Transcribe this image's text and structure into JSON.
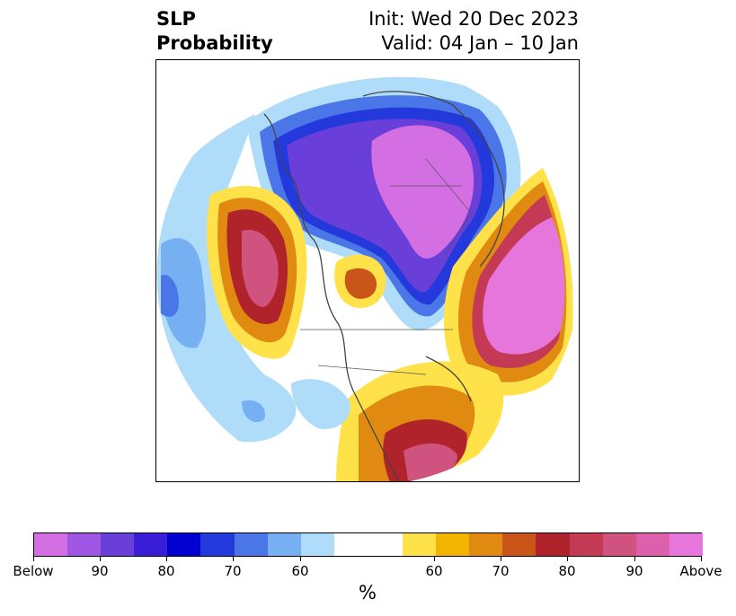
{
  "header": {
    "title_line1": "SLP",
    "title_line2": "Probability",
    "init_label": "Init: Wed 20 Dec 2023",
    "valid_label": "Valid: 04 Jan – 10 Jan"
  },
  "map": {
    "projection": "polar-stereographic-north",
    "region": "Northern Hemisphere"
  },
  "colorbar": {
    "colors": [
      "#d36ee3",
      "#9f57e3",
      "#6a3ed9",
      "#3a1dd6",
      "#0000d0",
      "#2339dc",
      "#4b76e8",
      "#76b0f2",
      "#aedcf9",
      "#ffffff",
      "#ffe24a",
      "#f2b400",
      "#e08a12",
      "#c95518",
      "#b0232a",
      "#c43a55",
      "#d0527e",
      "#dd60ad",
      "#e675dc"
    ],
    "tick_labels": [
      "Below",
      "90",
      "80",
      "70",
      "60",
      "60",
      "70",
      "80",
      "90",
      "Above"
    ],
    "unit_label": "%"
  }
}
